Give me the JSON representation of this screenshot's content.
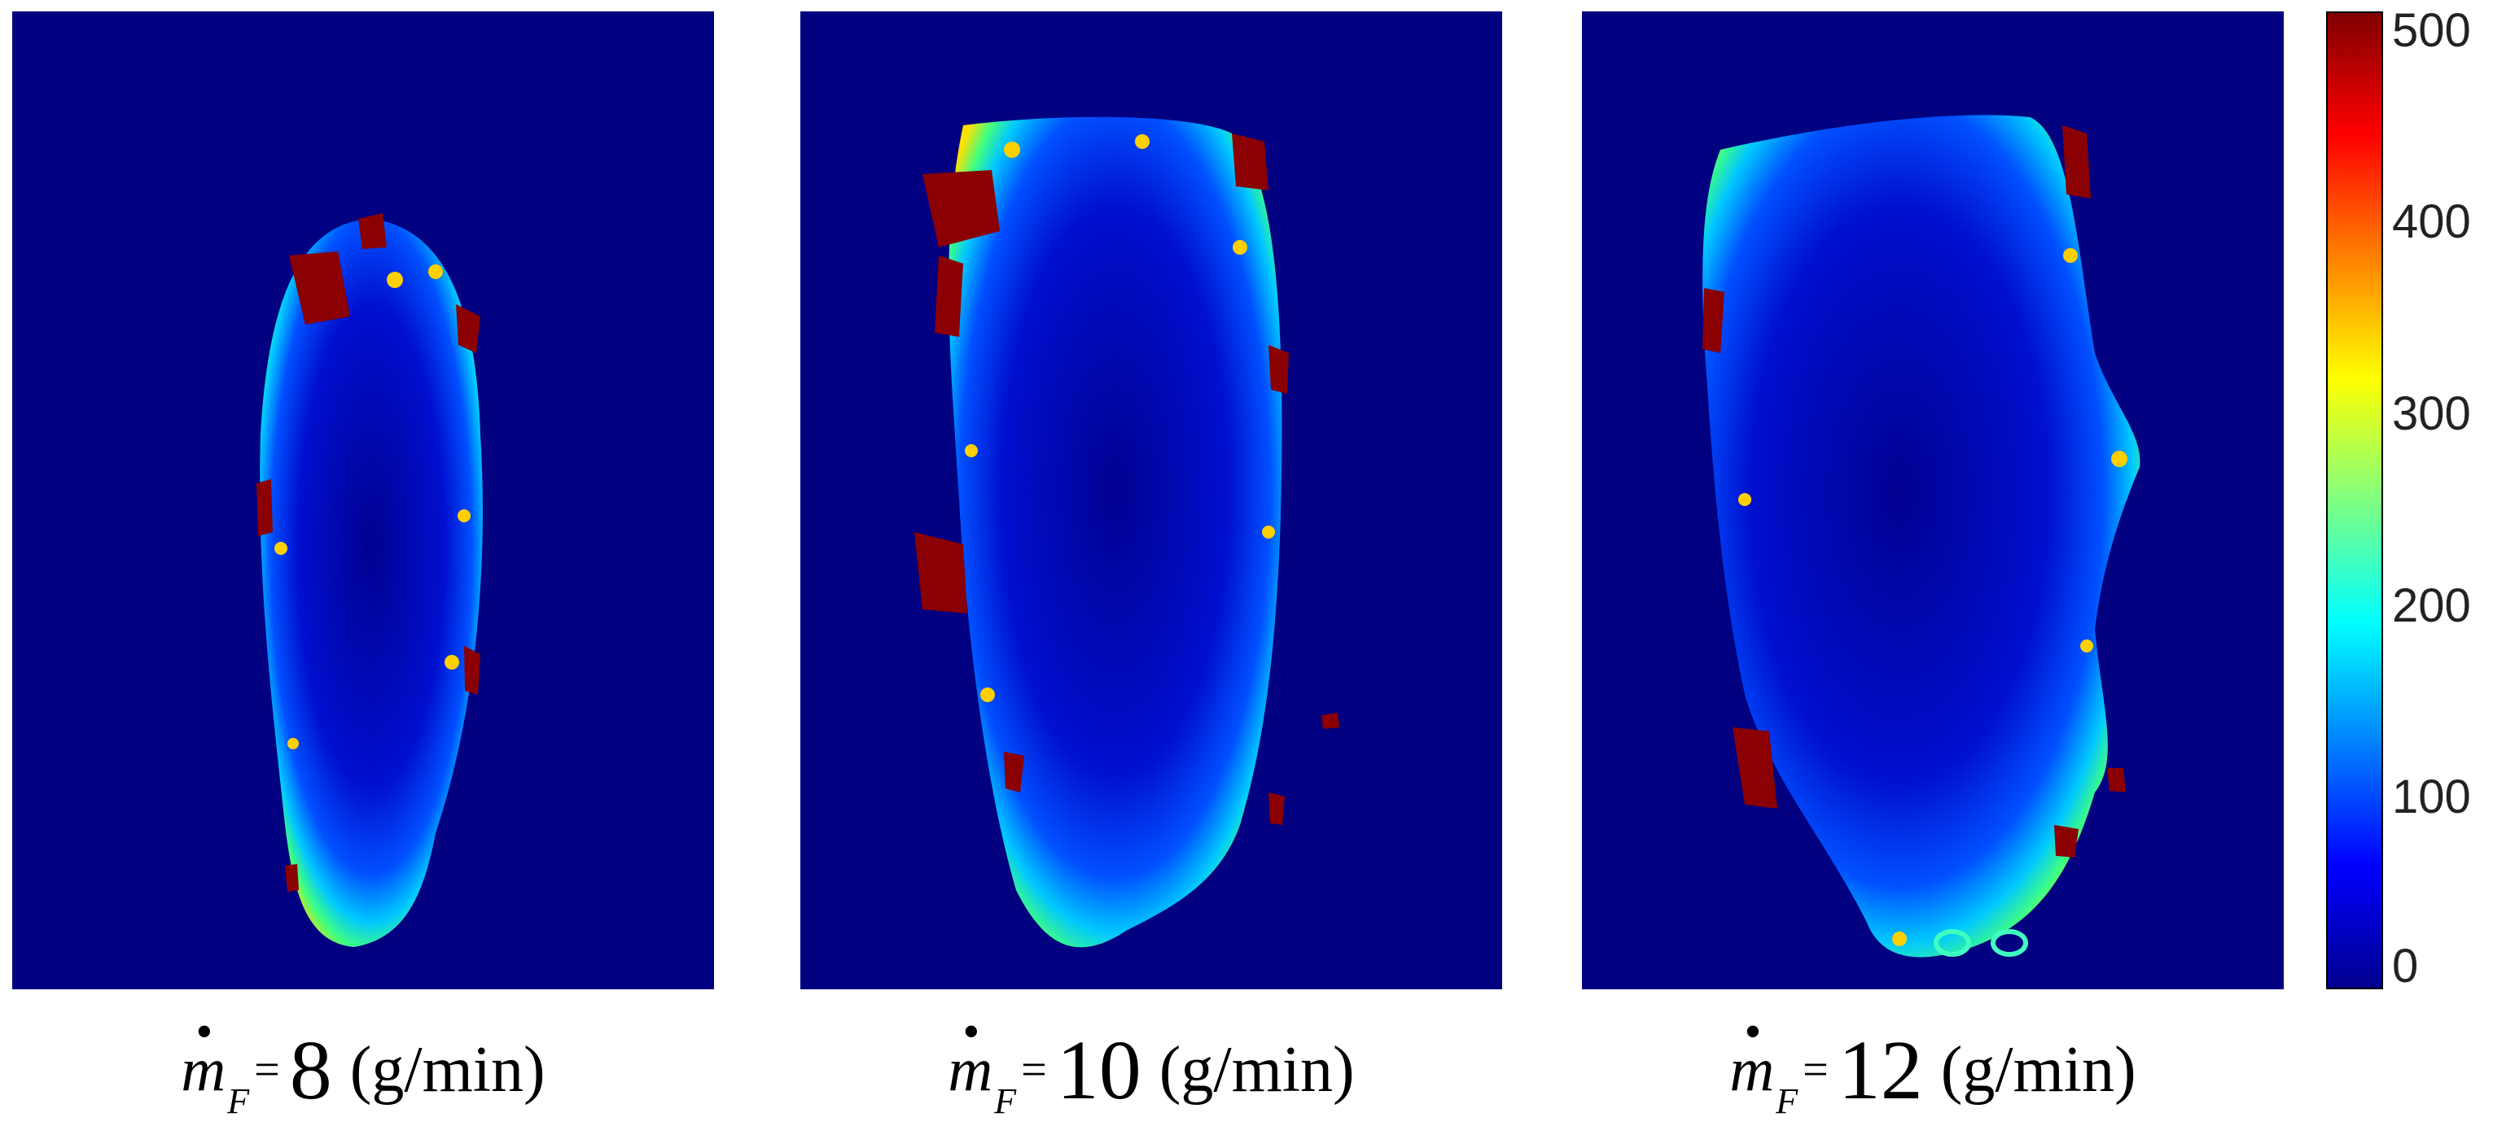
{
  "chart_data": {
    "type": "heatmap",
    "colormap": "jet",
    "colors": {
      "background": "#000080",
      "low": "#00008f",
      "mid": "#00ffff",
      "high": "#800000"
    },
    "colorbar": {
      "range": [
        0,
        510
      ],
      "ticks": [
        "0",
        "100",
        "200",
        "300",
        "400",
        "500"
      ]
    },
    "panels": [
      {
        "caption": {
          "symbol": "m",
          "subscript": "F",
          "eq": "=",
          "value": "8",
          "unit": "(g/min)"
        }
      },
      {
        "caption": {
          "symbol": "m",
          "subscript": "F",
          "eq": "=",
          "value": "10",
          "unit": "(g/min)"
        }
      },
      {
        "caption": {
          "symbol": "m",
          "subscript": "F",
          "eq": "=",
          "value": "12",
          "unit": "(g/min)"
        }
      }
    ]
  }
}
